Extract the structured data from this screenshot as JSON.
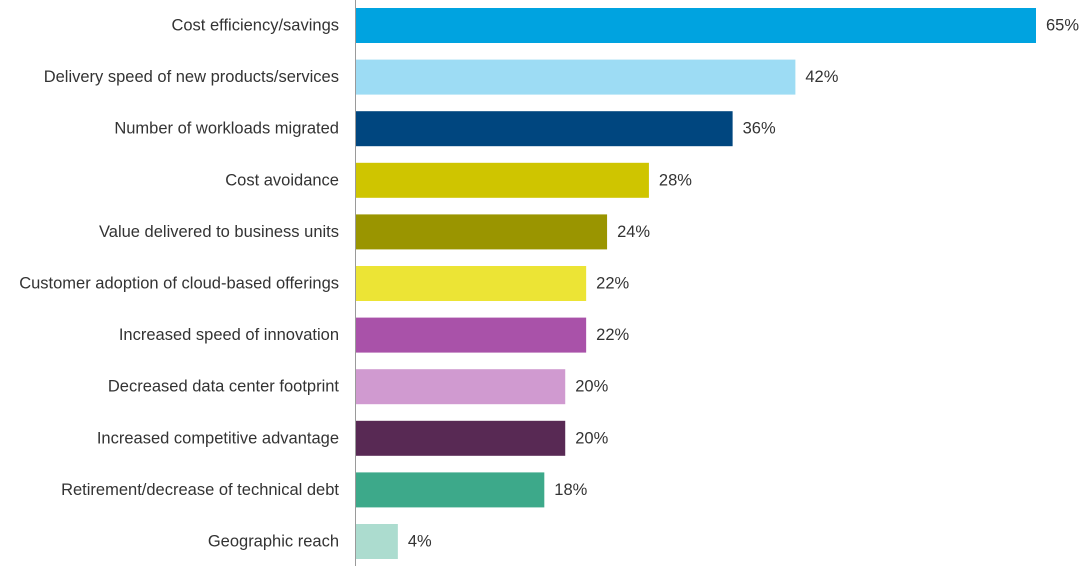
{
  "chart_data": {
    "type": "bar",
    "orientation": "horizontal",
    "title": "",
    "xlabel": "",
    "ylabel": "",
    "xlim": [
      0,
      65
    ],
    "grid": false,
    "value_suffix": "%",
    "categories": [
      "Cost efficiency/savings",
      "Delivery speed of new products/services",
      "Number of workloads migrated",
      "Cost avoidance",
      "Value delivered to business units",
      "Customer adoption of cloud-based offerings",
      "Increased speed of innovation",
      "Decreased data center footprint",
      "Increased competitive advantage",
      "Retirement/decrease of technical debt",
      "Geographic reach"
    ],
    "values": [
      65,
      42,
      36,
      28,
      24,
      22,
      22,
      20,
      20,
      18,
      4
    ],
    "value_labels": [
      "65%",
      "42%",
      "36%",
      "28%",
      "24%",
      "22%",
      "22%",
      "20%",
      "20%",
      "18%",
      "4%"
    ],
    "colors": [
      "#00a3e0",
      "#9ddcf4",
      "#00467f",
      "#cfc500",
      "#9a9500",
      "#ece435",
      "#a952a9",
      "#d09ad0",
      "#582954",
      "#3da98a",
      "#acdccf"
    ]
  }
}
